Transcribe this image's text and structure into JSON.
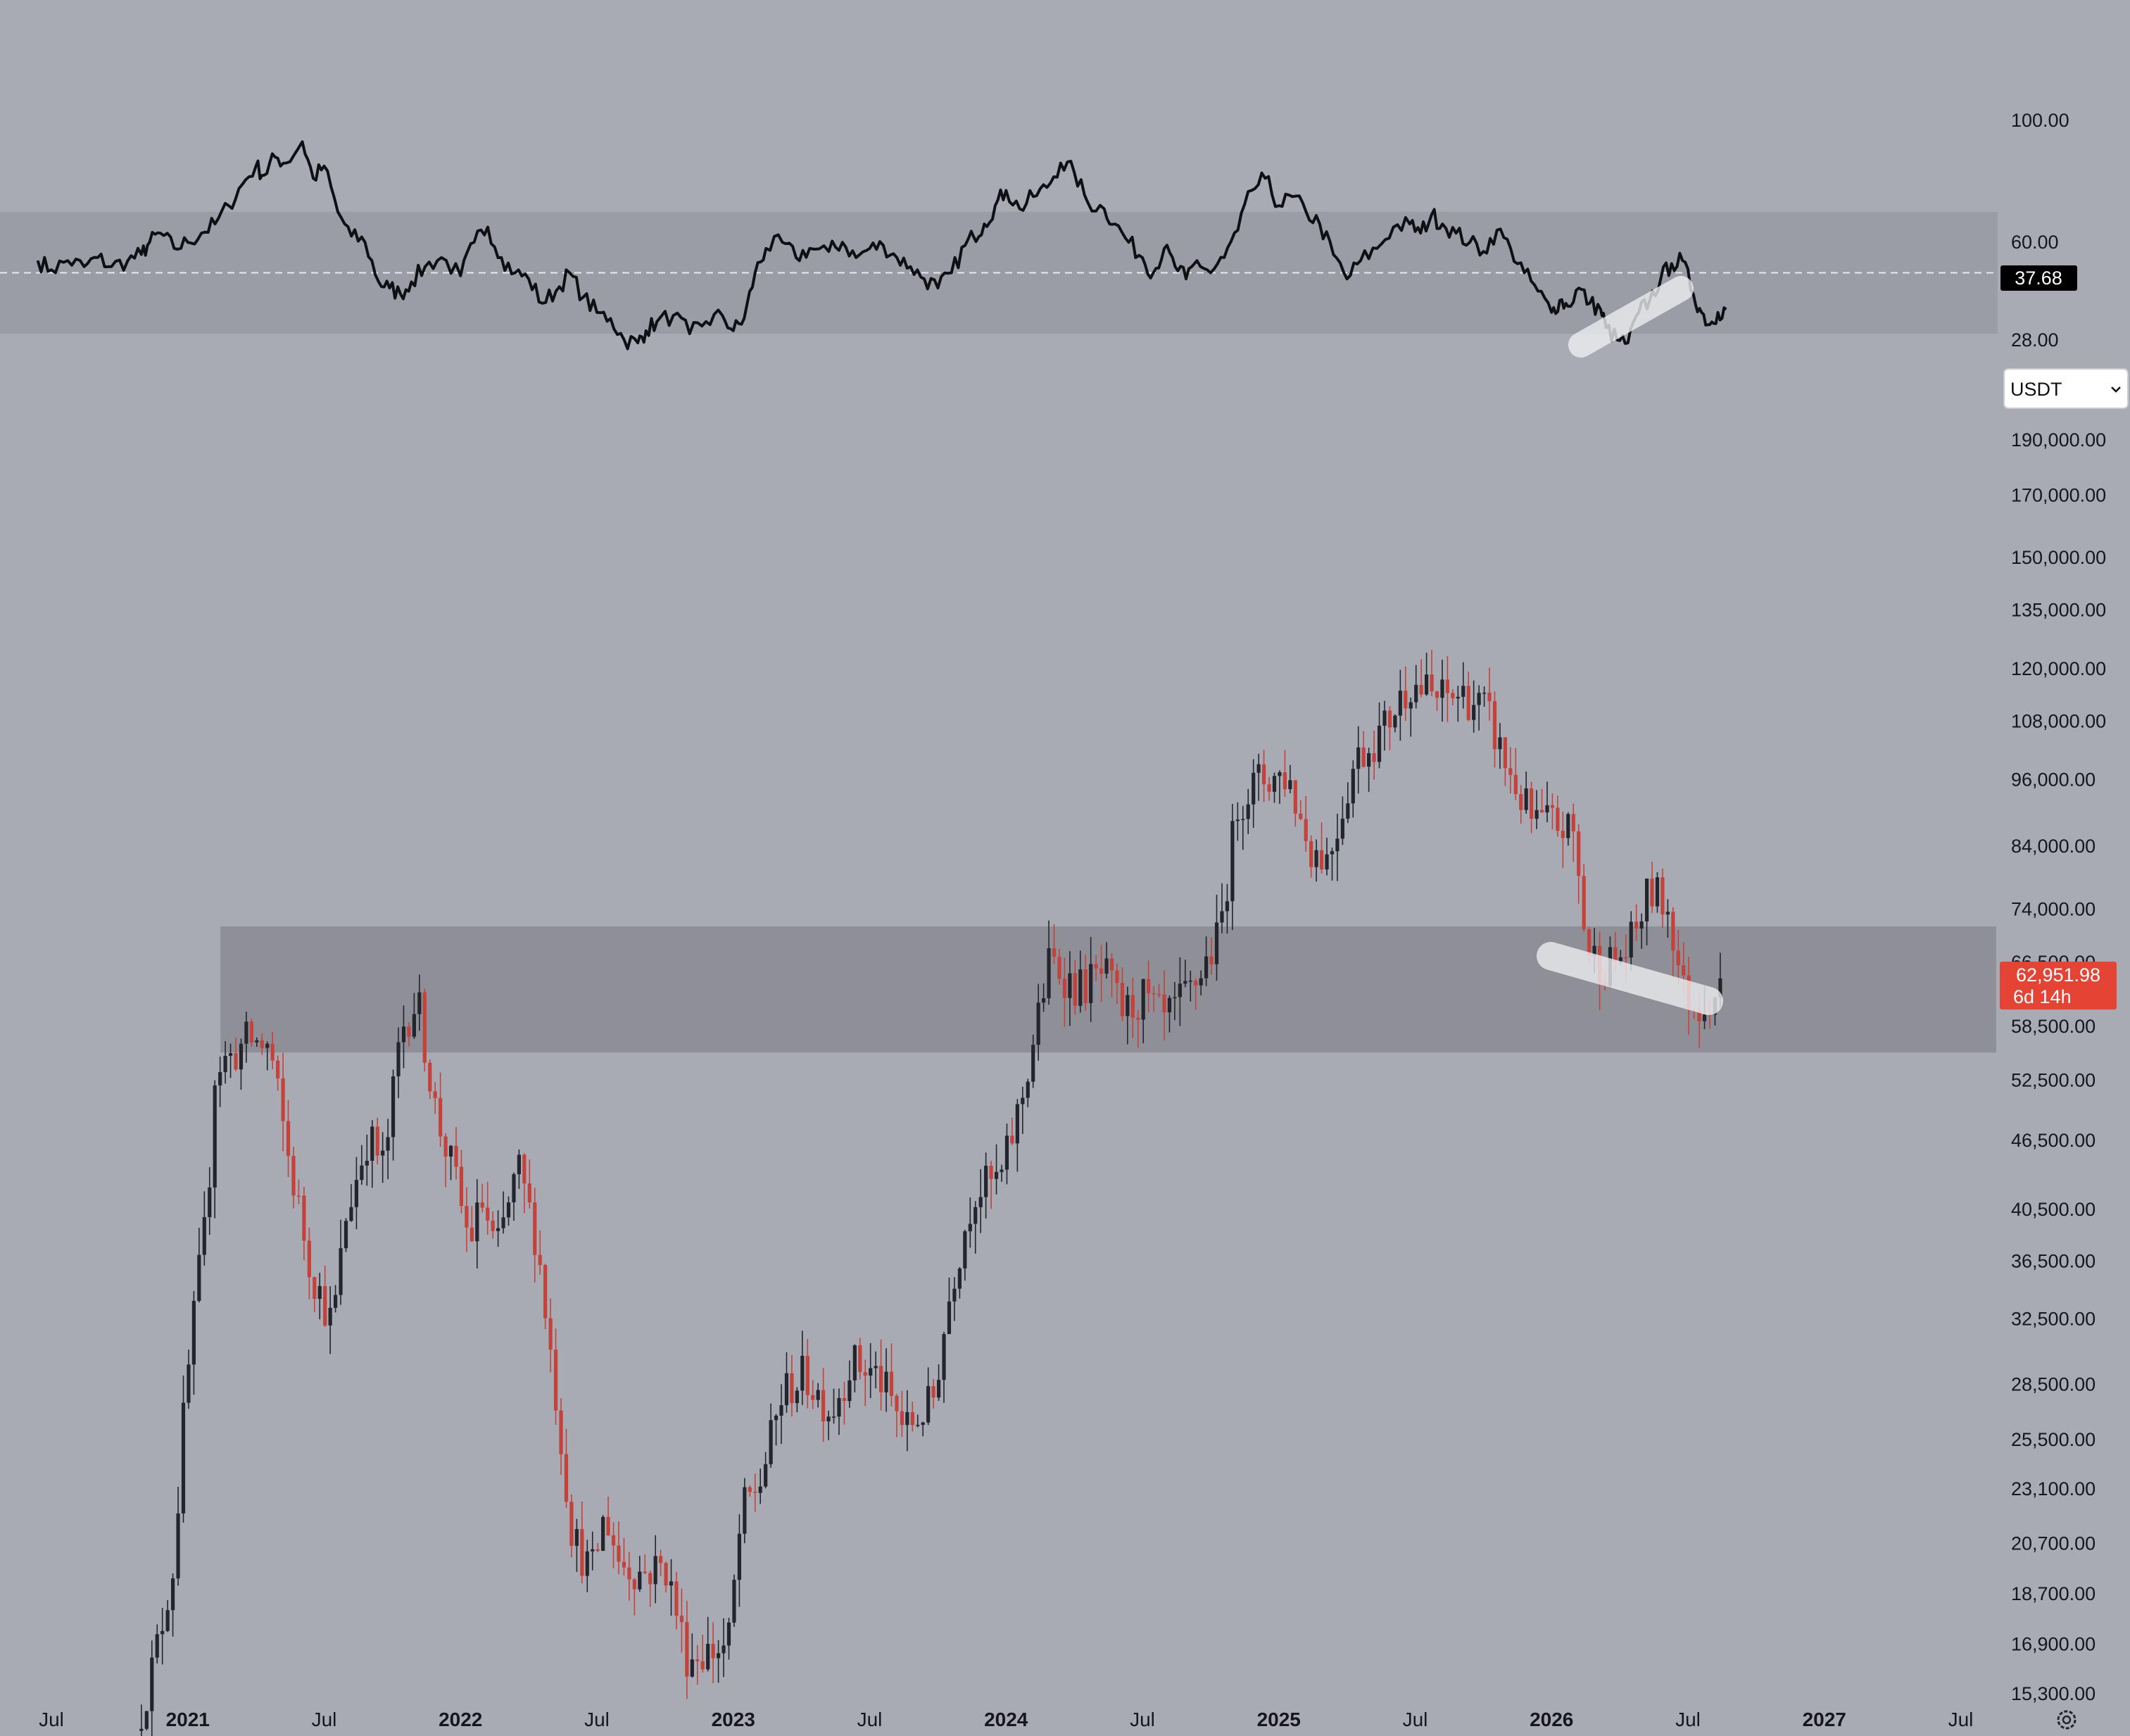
{
  "chart_data": [
    {
      "type": "line",
      "panel": "rsi",
      "title": "",
      "ylabel": "",
      "y_ticks": [
        "100.00",
        "60.00",
        "28.00"
      ],
      "ylim": [
        20,
        105
      ],
      "band": [
        30,
        70
      ],
      "midline": 50,
      "current_value_label": "37.68",
      "series": [
        {
          "points": [
            [
              2020.45,
              54
            ],
            [
              2020.5,
              51
            ],
            [
              2020.56,
              54
            ],
            [
              2020.62,
              52
            ],
            [
              2020.67,
              55
            ],
            [
              2020.72,
              52
            ],
            [
              2020.78,
              54
            ],
            [
              2020.83,
              56
            ],
            [
              2020.86,
              60
            ],
            [
              2020.9,
              63
            ],
            [
              2020.95,
              58
            ],
            [
              2021.0,
              60
            ],
            [
              2021.05,
              63
            ],
            [
              2021.1,
              66
            ],
            [
              2021.15,
              72
            ],
            [
              2021.2,
              79
            ],
            [
              2021.25,
              85
            ],
            [
              2021.28,
              82
            ],
            [
              2021.32,
              88
            ],
            [
              2021.36,
              86
            ],
            [
              2021.42,
              93
            ],
            [
              2021.46,
              81
            ],
            [
              2021.5,
              85
            ],
            [
              2021.55,
              70
            ],
            [
              2021.6,
              62
            ],
            [
              2021.65,
              60
            ],
            [
              2021.7,
              47
            ],
            [
              2021.74,
              45
            ],
            [
              2021.78,
              43
            ],
            [
              2021.82,
              47
            ],
            [
              2021.87,
              52
            ],
            [
              2021.93,
              55
            ],
            [
              2022.0,
              49
            ],
            [
              2022.05,
              60
            ],
            [
              2022.1,
              65
            ],
            [
              2022.15,
              55
            ],
            [
              2022.2,
              50
            ],
            [
              2022.25,
              48
            ],
            [
              2022.3,
              40
            ],
            [
              2022.35,
              44
            ],
            [
              2022.4,
              50
            ],
            [
              2022.45,
              42
            ],
            [
              2022.5,
              37
            ],
            [
              2022.55,
              35
            ],
            [
              2022.6,
              28
            ],
            [
              2022.65,
              27
            ],
            [
              2022.68,
              31
            ],
            [
              2022.72,
              34
            ],
            [
              2022.78,
              36
            ],
            [
              2022.84,
              30
            ],
            [
              2022.9,
              34
            ],
            [
              2022.96,
              36
            ],
            [
              2023.0,
              31
            ],
            [
              2023.04,
              35
            ],
            [
              2023.08,
              50
            ],
            [
              2023.12,
              58
            ],
            [
              2023.18,
              60
            ],
            [
              2023.23,
              55
            ],
            [
              2023.28,
              58
            ],
            [
              2023.35,
              57
            ],
            [
              2023.4,
              60
            ],
            [
              2023.45,
              55
            ],
            [
              2023.5,
              58
            ],
            [
              2023.55,
              59
            ],
            [
              2023.6,
              55
            ],
            [
              2023.65,
              52
            ],
            [
              2023.7,
              48
            ],
            [
              2023.75,
              45
            ],
            [
              2023.8,
              50
            ],
            [
              2023.85,
              59
            ],
            [
              2023.88,
              62
            ],
            [
              2023.92,
              66
            ],
            [
              2023.96,
              72
            ],
            [
              2024.0,
              77
            ],
            [
              2024.05,
              71
            ],
            [
              2024.1,
              75
            ],
            [
              2024.15,
              78
            ],
            [
              2024.2,
              86
            ],
            [
              2024.25,
              83
            ],
            [
              2024.3,
              73
            ],
            [
              2024.36,
              71
            ],
            [
              2024.4,
              66
            ],
            [
              2024.45,
              60
            ],
            [
              2024.5,
              55
            ],
            [
              2024.54,
              50
            ],
            [
              2024.58,
              58
            ],
            [
              2024.62,
              52
            ],
            [
              2024.66,
              48
            ],
            [
              2024.7,
              54
            ],
            [
              2024.75,
              50
            ],
            [
              2024.8,
              55
            ],
            [
              2024.85,
              64
            ],
            [
              2024.9,
              77
            ],
            [
              2024.95,
              81
            ],
            [
              2025.0,
              72
            ],
            [
              2025.05,
              75
            ],
            [
              2025.1,
              70
            ],
            [
              2025.15,
              66
            ],
            [
              2025.2,
              56
            ],
            [
              2025.25,
              48
            ],
            [
              2025.3,
              54
            ],
            [
              2025.36,
              58
            ],
            [
              2025.42,
              65
            ],
            [
              2025.48,
              66
            ],
            [
              2025.52,
              63
            ],
            [
              2025.56,
              69
            ],
            [
              2025.6,
              66
            ],
            [
              2025.65,
              63
            ],
            [
              2025.7,
              60
            ],
            [
              2025.75,
              57
            ],
            [
              2025.8,
              64
            ],
            [
              2025.85,
              58
            ],
            [
              2025.9,
              50
            ],
            [
              2025.95,
              44
            ],
            [
              2026.0,
              37
            ],
            [
              2026.03,
              41
            ],
            [
              2026.06,
              39
            ],
            [
              2026.1,
              45
            ],
            [
              2026.14,
              40
            ],
            [
              2026.18,
              38
            ],
            [
              2026.2,
              32
            ],
            [
              2026.24,
              28
            ],
            [
              2026.28,
              27
            ],
            [
              2026.32,
              37
            ],
            [
              2026.36,
              41
            ],
            [
              2026.4,
              48
            ],
            [
              2026.44,
              53
            ],
            [
              2026.48,
              54
            ],
            [
              2026.52,
              43
            ],
            [
              2026.55,
              37
            ],
            [
              2026.58,
              33
            ],
            [
              2026.61,
              37
            ],
            [
              2026.64,
              38
            ]
          ]
        }
      ]
    },
    {
      "type": "candlestick",
      "panel": "price",
      "title": "",
      "ylabel": "",
      "scale": "log",
      "ylim": [
        14000,
        205000
      ],
      "y_ticks": [
        "190,000.00",
        "170,000.00",
        "150,000.00",
        "135,000.00",
        "120,000.00",
        "108,000.00",
        "96,000.00",
        "84,000.00",
        "74,000.00",
        "66,500.00",
        "58,500.00",
        "52,500.00",
        "46,500.00",
        "40,500.00",
        "36,500.00",
        "32,500.00",
        "28,500.00",
        "25,500.00",
        "23,100.00",
        "20,700.00",
        "18,700.00",
        "16,900.00",
        "15,300.00"
      ],
      "price_zone": {
        "from": 2021.12,
        "to": 2027.63,
        "low": 55500,
        "high": 71500
      },
      "current_price_label": "62,951.98",
      "countdown_label": "6d 14h",
      "x_ticks": [
        {
          "label": "Jul",
          "year": false
        },
        {
          "label": "2021",
          "year": true
        },
        {
          "label": "Jul",
          "year": false
        },
        {
          "label": "2022",
          "year": true
        },
        {
          "label": "Jul",
          "year": false
        },
        {
          "label": "2023",
          "year": true
        },
        {
          "label": "Jul",
          "year": false
        },
        {
          "label": "2024",
          "year": true
        },
        {
          "label": "Jul",
          "year": false
        },
        {
          "label": "2025",
          "year": true
        },
        {
          "label": "Jul",
          "year": false
        },
        {
          "label": "2026",
          "year": true
        },
        {
          "label": "Jul",
          "year": false
        },
        {
          "label": "2027",
          "year": true
        },
        {
          "label": "Jul",
          "year": false
        }
      ],
      "x_tick_dates": [
        2020.5,
        2021.0,
        2021.5,
        2022.0,
        2022.5,
        2023.0,
        2023.5,
        2024.0,
        2024.5,
        2025.0,
        2025.5,
        2026.0,
        2026.5,
        2027.0,
        2027.5
      ],
      "trend_anchors": [
        [
          2020.83,
          14200
        ],
        [
          2020.9,
          16500
        ],
        [
          2020.97,
          20000
        ],
        [
          2021.0,
          26000
        ],
        [
          2021.05,
          34000
        ],
        [
          2021.09,
          40000
        ],
        [
          2021.12,
          54000
        ],
        [
          2021.18,
          55000
        ],
        [
          2021.24,
          57000
        ],
        [
          2021.32,
          56000
        ],
        [
          2021.38,
          46000
        ],
        [
          2021.47,
          36000
        ],
        [
          2021.55,
          32000
        ],
        [
          2021.6,
          40000
        ],
        [
          2021.68,
          47000
        ],
        [
          2021.74,
          44000
        ],
        [
          2021.8,
          58000
        ],
        [
          2021.86,
          62000
        ],
        [
          2021.93,
          49000
        ],
        [
          2022.0,
          43000
        ],
        [
          2022.05,
          38000
        ],
        [
          2022.1,
          41000
        ],
        [
          2022.15,
          37000
        ],
        [
          2022.23,
          44000
        ],
        [
          2022.3,
          38000
        ],
        [
          2022.36,
          29000
        ],
        [
          2022.43,
          21000
        ],
        [
          2022.5,
          19500
        ],
        [
          2022.55,
          22000
        ],
        [
          2022.6,
          20000
        ],
        [
          2022.68,
          19500
        ],
        [
          2022.77,
          19800
        ],
        [
          2022.85,
          16500
        ],
        [
          2023.0,
          16800
        ],
        [
          2023.05,
          22000
        ],
        [
          2023.12,
          23500
        ],
        [
          2023.2,
          28000
        ],
        [
          2023.28,
          29000
        ],
        [
          2023.38,
          27000
        ],
        [
          2023.45,
          29800
        ],
        [
          2023.55,
          29000
        ],
        [
          2023.65,
          26000
        ],
        [
          2023.75,
          27500
        ],
        [
          2023.82,
          35000
        ],
        [
          2023.9,
          42000
        ],
        [
          2024.0,
          43000
        ],
        [
          2024.08,
          51000
        ],
        [
          2024.18,
          67000
        ],
        [
          2024.28,
          63000
        ],
        [
          2024.38,
          65000
        ],
        [
          2024.45,
          60000
        ],
        [
          2024.52,
          62000
        ],
        [
          2024.6,
          59000
        ],
        [
          2024.7,
          63000
        ],
        [
          2024.8,
          70000
        ],
        [
          2024.87,
          92000
        ],
        [
          2024.95,
          96000
        ],
        [
          2025.05,
          97000
        ],
        [
          2025.13,
          84000
        ],
        [
          2025.2,
          82000
        ],
        [
          2025.3,
          100000
        ],
        [
          2025.4,
          106000
        ],
        [
          2025.5,
          117000
        ],
        [
          2025.6,
          113000
        ],
        [
          2025.7,
          114000
        ],
        [
          2025.78,
          110000
        ],
        [
          2025.85,
          99000
        ],
        [
          2025.95,
          88000
        ],
        [
          2026.03,
          88000
        ],
        [
          2026.1,
          86000
        ],
        [
          2026.15,
          68000
        ],
        [
          2026.22,
          66000
        ],
        [
          2026.3,
          68000
        ],
        [
          2026.38,
          77000
        ],
        [
          2026.45,
          74000
        ],
        [
          2026.5,
          63000
        ],
        [
          2026.55,
          61000
        ],
        [
          2026.63,
          62952
        ]
      ]
    }
  ],
  "currency_select": {
    "value": "USDT"
  },
  "settings_icon": "gear-icon",
  "colors": {
    "background": "#a9abb4",
    "band": "#9b9da6",
    "zone": "#8e8f97",
    "bull": "#23252c",
    "bear": "#c4423a",
    "price_badge": "#e54434",
    "rsi_badge": "#000000"
  }
}
